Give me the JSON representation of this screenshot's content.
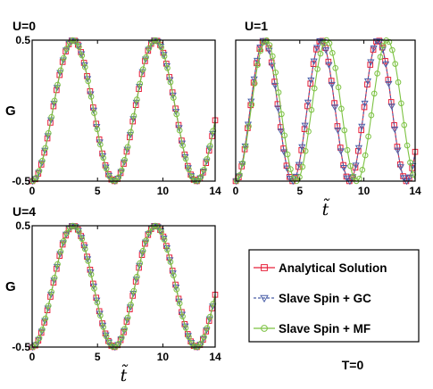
{
  "figure": {
    "condition_label": "T=0",
    "legend": [
      {
        "label": "Analytical Solution",
        "color": "#e8203a",
        "marker": "square",
        "line": "solid"
      },
      {
        "label": "Slave Spin + GC",
        "color": "#4a5fa8",
        "marker": "triangle-down",
        "line": "dashed"
      },
      {
        "label": "Slave Spin + MF",
        "color": "#7cc242",
        "marker": "circle",
        "line": "solid"
      }
    ]
  },
  "chart_data": [
    {
      "type": "line",
      "panel_label": "U=0",
      "ylabel": "G",
      "xlabel": "",
      "xlim": [
        0,
        14
      ],
      "ylim": [
        -0.5,
        0.5
      ],
      "xticks": [
        "0",
        "5",
        "10",
        "14"
      ],
      "yticks": [
        "-0.5",
        "0.5"
      ],
      "series": [
        {
          "name": "Analytical Solution",
          "function": "-0.5*cos(w*t)",
          "w": 1.0
        },
        {
          "name": "Slave Spin + GC",
          "function": "-0.5*cos(w*t)",
          "w": 1.0
        },
        {
          "name": "Slave Spin + MF",
          "function": "-0.5*cos(w*t)",
          "w": 1.0
        }
      ]
    },
    {
      "type": "line",
      "panel_label": "U=1",
      "ylabel": "",
      "xlabel": "t̃",
      "xlim": [
        0,
        14
      ],
      "ylim": [
        -0.5,
        0.5
      ],
      "xticks": [
        "0",
        "5",
        "10",
        "14"
      ],
      "yticks": [],
      "series": [
        {
          "name": "Analytical Solution",
          "function": "-0.5*cos(w*t)",
          "w": 1.414
        },
        {
          "name": "Slave Spin + GC",
          "function": "-0.5*cos(w*t)",
          "w": 1.414
        },
        {
          "name": "Slave Spin + MF",
          "function": "-0.5*cos(w*t)",
          "w": 1.33
        }
      ]
    },
    {
      "type": "line",
      "panel_label": "U=4",
      "ylabel": "G",
      "xlabel": "t̃",
      "xlim": [
        0,
        14
      ],
      "ylim": [
        -0.5,
        0.5
      ],
      "xticks": [
        "0",
        "5",
        "10",
        "14"
      ],
      "yticks": [
        "-0.5",
        "0.5"
      ],
      "series": [
        {
          "name": "Analytical Solution",
          "function": "-0.5*cos(w*t)",
          "w": 1.0
        },
        {
          "name": "Slave Spin + GC",
          "function": "-0.5*cos(w*t)",
          "w": 1.0
        },
        {
          "name": "Slave Spin + MF",
          "function": "-0.5*cos(w*t)",
          "w": 1.0
        }
      ]
    }
  ]
}
